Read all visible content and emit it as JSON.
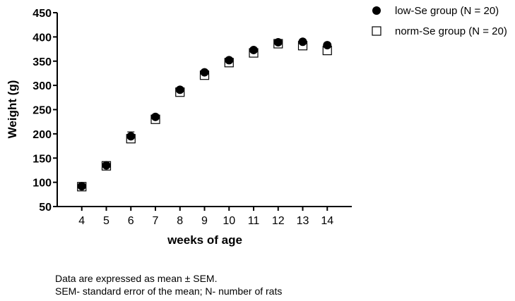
{
  "chart_data": {
    "type": "scatter",
    "title": "",
    "xlabel": "weeks of age",
    "ylabel": "Weight (g)",
    "x": [
      4,
      5,
      6,
      7,
      8,
      9,
      10,
      11,
      12,
      13,
      14
    ],
    "xlim": [
      3,
      15
    ],
    "ylim": [
      50,
      450
    ],
    "yticks": [
      50,
      100,
      150,
      200,
      250,
      300,
      350,
      400,
      450
    ],
    "series": [
      {
        "name": "low-Se group (N = 20)",
        "marker": "filled-circle",
        "color": "#000000",
        "values": [
          92,
          135,
          195,
          235,
          291,
          327,
          352,
          373,
          389,
          390,
          383
        ],
        "sem": [
          4,
          4,
          9,
          4,
          4,
          4,
          4,
          4,
          4,
          4,
          4
        ]
      },
      {
        "name": "norm-Se group (N = 20)",
        "marker": "open-square",
        "color": "#000000",
        "values": [
          91,
          134,
          190,
          230,
          286,
          321,
          347,
          367,
          386,
          382,
          372
        ],
        "sem": [
          3,
          3,
          5,
          4,
          4,
          4,
          4,
          4,
          4,
          4,
          4
        ]
      }
    ],
    "legend_position": "top-right",
    "grid": false
  },
  "notes": [
    "Data are expressed as mean ± SEM.",
    "SEM- standard error of the mean; N- number of rats"
  ]
}
